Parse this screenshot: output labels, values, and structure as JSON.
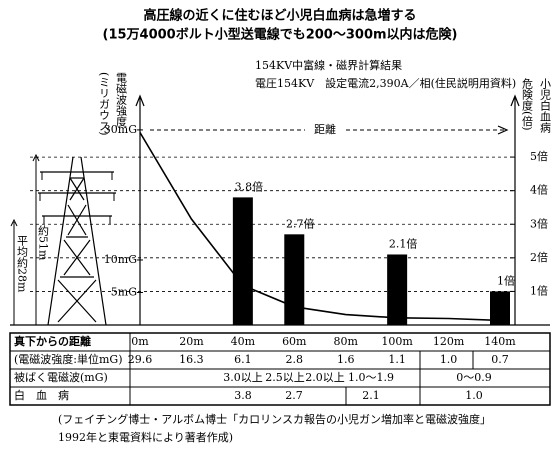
{
  "chart_data": {
    "type": "bar",
    "title": "高圧線の近くに住むほど小児白血病は急増する",
    "subtitle": "(15万4000ボルト小型送電線でも200〜300m以内は危険)",
    "notes": [
      "154KV中富線・磁界計算結果",
      "電圧154KV　設定電流2,390A／相(住民説明用資料)"
    ],
    "x_label": "距離",
    "y_label": [
      "小児白血病",
      "危険度(倍)"
    ],
    "y2_label": [
      "電磁波強度",
      "(ミリガウス)"
    ],
    "x": [
      40,
      60,
      100,
      140
    ],
    "values": [
      3.8,
      2.7,
      2.1,
      1
    ],
    "value_labels": [
      "3.8倍",
      "2.7倍",
      "2.1倍",
      "1倍"
    ],
    "color": "#000000",
    "xlim": [
      0,
      140
    ],
    "ylim": [
      0,
      6.7
    ],
    "yticks": [
      {
        "value": 1,
        "label": "1倍"
      },
      {
        "value": 2,
        "label": "2倍"
      },
      {
        "value": 3,
        "label": "3倍"
      },
      {
        "value": 4,
        "label": "4倍"
      },
      {
        "value": 5,
        "label": "5倍"
      }
    ],
    "y2lim": [
      0,
      34.6
    ],
    "y2ticks": [
      {
        "value": 5,
        "label": "5mG"
      },
      {
        "value": 10,
        "label": "10mG"
      },
      {
        "value": 30,
        "label": "30mG"
      }
    ],
    "series": [
      {
        "axis": "y2",
        "color": "#000000",
        "x": [
          0,
          20,
          40,
          60,
          80,
          100,
          120,
          140
        ],
        "values": [
          29.6,
          16.3,
          6.1,
          2.8,
          1.6,
          1.1,
          1.0,
          0.7
        ]
      }
    ],
    "grid": true,
    "annotations": [
      "約51m",
      "平均約28m"
    ]
  },
  "table": {
    "rows": [
      {
        "label": "真下からの距離",
        "cells": [
          "0m",
          "20m",
          "40m",
          "60m",
          "80m",
          "100m",
          "120m",
          "140m"
        ]
      },
      {
        "label": "(電磁波強度:単位mG)",
        "cells": [
          "29.6",
          "16.3",
          "6.1",
          "2.8",
          "1.6",
          "1.1",
          "1.0",
          "0.7"
        ]
      },
      {
        "label": "被ばく電磁波(mG)",
        "cells": [
          "3.0以上",
          "2.5以上",
          "2.0以上",
          "1.0〜1.9",
          "0〜0.9"
        ]
      },
      {
        "label": "白　血　病",
        "cells": [
          "3.8",
          "2.7",
          "2.1",
          "1.0"
        ]
      }
    ]
  },
  "footnote": [
    "(フェイチング博士・アルボム博士「カロリンスカ報告の小児ガン増加率と電磁波強度」",
    "1992年と東電資料により著者作成)"
  ]
}
